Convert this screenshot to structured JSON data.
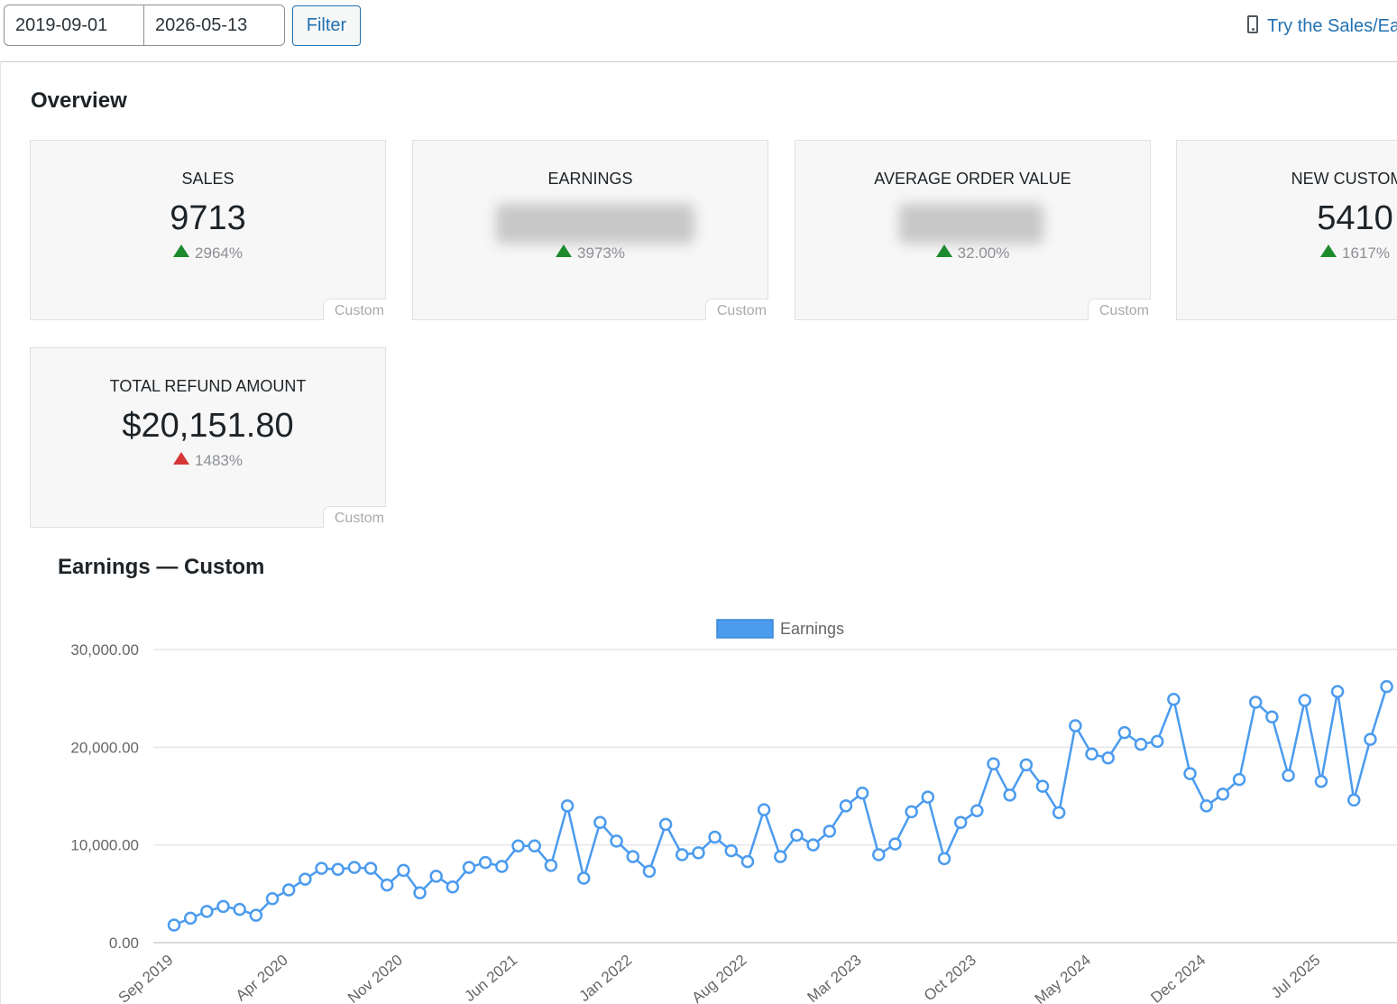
{
  "filter_bar": {
    "start_date": "2019-09-01",
    "end_date": "2026-05-13",
    "filter_label": "Filter",
    "try_link": "Try the Sales/Ear",
    "try_link_icon": "phone-icon"
  },
  "overview": {
    "title": "Overview",
    "cards": [
      {
        "title": "SALES",
        "value": "9713",
        "change": "2964%",
        "direction": "up",
        "color": "#1e8a2e",
        "period": "Custom"
      },
      {
        "title": "EARNINGS",
        "value": "",
        "change": "3973%",
        "direction": "up",
        "color": "#1e8a2e",
        "period": "Custom",
        "blurred": true
      },
      {
        "title": "AVERAGE ORDER VALUE",
        "value": "",
        "change": "32.00%",
        "direction": "up",
        "color": "#1e8a2e",
        "period": "Custom",
        "blurred": true
      },
      {
        "title": "NEW CUSTOMEI",
        "value": "5410",
        "change": "1617%",
        "direction": "up",
        "color": "#1e8a2e",
        "period": "Custom"
      },
      {
        "title": "TOTAL REFUND AMOUNT",
        "value": "$20,151.80",
        "change": "1483%",
        "direction": "up",
        "color": "#d63638",
        "period": "Custom"
      }
    ]
  },
  "earnings_chart": {
    "title": "Earnings — Custom"
  },
  "chart_data": {
    "type": "line",
    "title": "Earnings — Custom",
    "legend": [
      "Earnings"
    ],
    "legend_position": "top",
    "series_color": "#4b9bef",
    "ylim": [
      0,
      30000
    ],
    "y_ticks": [
      "30,000.00",
      "20,000.00",
      "10,000.00",
      "0.00"
    ],
    "x_ticks": [
      "Sep 2019",
      "Apr 2020",
      "Nov 2020",
      "Jun 2021",
      "Jan 2022",
      "Aug 2022",
      "Mar 2023",
      "Oct 2023",
      "May 2024",
      "Dec 2024",
      "Jul 2025"
    ],
    "grid": true,
    "series": [
      {
        "name": "Earnings",
        "values": [
          1800,
          2500,
          3200,
          3700,
          3400,
          2800,
          4500,
          5400,
          6500,
          7600,
          7500,
          7700,
          7600,
          5900,
          7400,
          5100,
          6800,
          5700,
          7700,
          8200,
          7800,
          9900,
          9900,
          7900,
          14000,
          6600,
          12300,
          10400,
          8800,
          7300,
          12100,
          9000,
          9200,
          10800,
          9400,
          8300,
          13600,
          8800,
          11000,
          10000,
          11400,
          14000,
          15300,
          9000,
          10100,
          13400,
          14900,
          8600,
          12300,
          13500,
          18300,
          15100,
          18200,
          16000,
          13300,
          22200,
          19300,
          18900,
          21500,
          20300,
          20600,
          24900,
          17300,
          14000,
          15200,
          16700,
          24600,
          23100,
          17100,
          24800,
          16500,
          25700,
          14600,
          20800,
          26200
        ]
      }
    ]
  }
}
